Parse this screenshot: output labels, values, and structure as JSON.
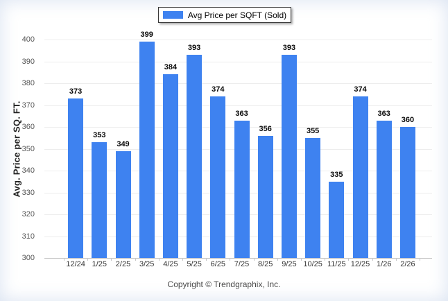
{
  "legend": {
    "label": "Avg Price per SQFT (Sold)",
    "swatch_color": "#3E82F0"
  },
  "chart_data": {
    "type": "bar",
    "title": "Avg Price per SQFT (Sold)",
    "categories": [
      "12/24",
      "1/25",
      "2/25",
      "3/25",
      "4/25",
      "5/25",
      "6/25",
      "7/25",
      "8/25",
      "9/25",
      "10/25",
      "11/25",
      "12/25",
      "1/26",
      "2/26"
    ],
    "values": [
      373,
      353,
      349,
      399,
      384,
      393,
      374,
      363,
      356,
      393,
      355,
      335,
      374,
      363,
      360
    ],
    "xlabel": "",
    "ylabel": "Avg. Price per SQ. FT.",
    "ylim": [
      300,
      400
    ],
    "ytick_step": 10,
    "grid": true,
    "bar_color": "#3E82F0",
    "value_labels": true,
    "legend_position": "top-center"
  },
  "footer": {
    "copyright": "Copyright © Trendgraphix, Inc."
  }
}
